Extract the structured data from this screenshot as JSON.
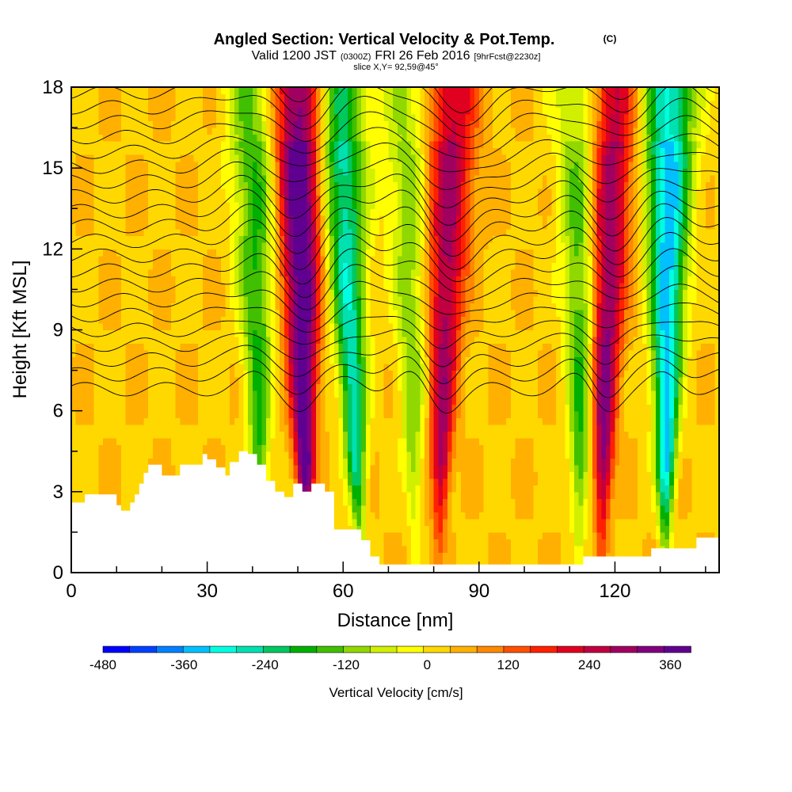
{
  "chart_data": {
    "type": "heatmap",
    "title": "Angled Section: Vertical Velocity & Pot.Temp.",
    "title_mark": "(C)",
    "subtitle": {
      "valid": "Valid 1200 JST",
      "zulu": "(0300Z)",
      "date": "FRI 26 Feb 2016",
      "forecast": "[9hrFcst@2230z]"
    },
    "slice_note": "slice X,Y= 92,59@45°",
    "xlabel": "Distance [nm]",
    "ylabel": "Height [Kft MSL]",
    "xlim": [
      0,
      143
    ],
    "ylim": [
      0,
      18
    ],
    "x_ticks": [
      0,
      30,
      60,
      90,
      120
    ],
    "x_tick_labels": [
      "0",
      "30",
      "60",
      "90",
      "120"
    ],
    "y_ticks": [
      0,
      3,
      6,
      9,
      12,
      15,
      18
    ],
    "y_tick_labels": [
      "0",
      "3",
      "6",
      "9",
      "12",
      "15",
      "18"
    ],
    "colorbar": {
      "label": "Vertical Velocity [cm/s]",
      "tick_values": [
        -480,
        -360,
        -240,
        -120,
        0,
        120,
        240,
        360
      ],
      "tick_labels": [
        "-480",
        "-360",
        "-240",
        "-120",
        "0",
        "120",
        "240",
        "360"
      ],
      "min": -480,
      "max": 390,
      "colors": [
        "#0000ff",
        "#0040ff",
        "#0080ff",
        "#00c0ff",
        "#00ffe0",
        "#00e0b0",
        "#00c860",
        "#00b000",
        "#40c000",
        "#90d800",
        "#d0f000",
        "#ffff00",
        "#ffd800",
        "#ffb000",
        "#ff8800",
        "#ff5000",
        "#ff2000",
        "#e00020",
        "#c00040",
        "#a00060",
        "#800080",
        "#600090"
      ]
    },
    "updraft_bands": [
      {
        "x_top": 50,
        "x_bottom": 52,
        "peak": 380
      },
      {
        "x_top": 84,
        "x_bottom": 81,
        "peak": 260
      },
      {
        "x_top": 119,
        "x_bottom": 117,
        "peak": 300
      }
    ],
    "downdraft_bands": [
      {
        "x_top": 40,
        "x_bottom": 42,
        "peak": -200
      },
      {
        "x_top": 59,
        "x_bottom": 64,
        "peak": -300
      },
      {
        "x_top": 74,
        "x_bottom": 76,
        "peak": -140
      },
      {
        "x_top": 113,
        "x_bottom": 112,
        "peak": -200
      },
      {
        "x_top": 132,
        "x_bottom": 131,
        "peak": -380
      }
    ],
    "terrain_kft": [
      [
        0,
        2.6
      ],
      [
        3,
        2.9
      ],
      [
        9,
        2.9
      ],
      [
        10,
        2.5
      ],
      [
        11,
        2.3
      ],
      [
        13,
        2.6
      ],
      [
        14,
        2.9
      ],
      [
        15,
        3.3
      ],
      [
        16,
        3.7
      ],
      [
        17,
        4.0
      ],
      [
        19,
        4.0
      ],
      [
        20,
        3.6
      ],
      [
        23,
        3.6
      ],
      [
        24,
        4.0
      ],
      [
        28,
        4.0
      ],
      [
        29,
        4.4
      ],
      [
        30,
        4.2
      ],
      [
        32,
        3.9
      ],
      [
        34,
        3.6
      ],
      [
        35,
        4.1
      ],
      [
        37,
        4.5
      ],
      [
        39,
        4.4
      ],
      [
        41,
        4.0
      ],
      [
        43,
        3.4
      ],
      [
        45,
        3.0
      ],
      [
        47,
        2.8
      ],
      [
        49,
        3.3
      ],
      [
        51,
        3.0
      ],
      [
        53,
        3.3
      ],
      [
        56,
        3.0
      ],
      [
        58,
        1.6
      ],
      [
        62,
        1.6
      ],
      [
        64,
        1.2
      ],
      [
        66,
        0.6
      ],
      [
        68,
        0.3
      ],
      [
        90,
        0.3
      ],
      [
        105,
        0.3
      ],
      [
        113,
        0.6
      ],
      [
        123,
        0.6
      ],
      [
        128,
        0.9
      ],
      [
        136,
        0.9
      ],
      [
        138,
        1.3
      ],
      [
        143,
        1.3
      ]
    ]
  }
}
